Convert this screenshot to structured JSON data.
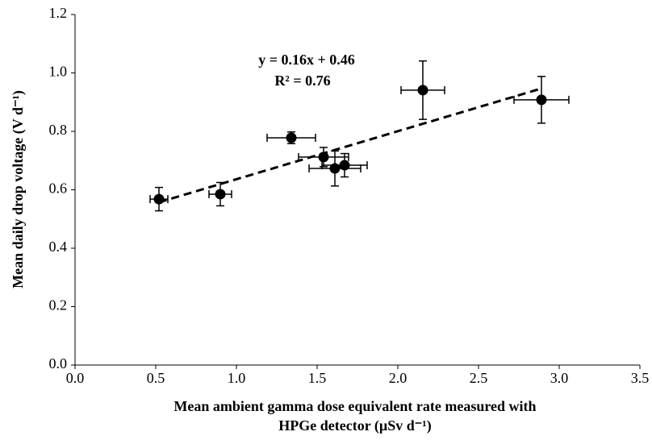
{
  "chart_data": {
    "type": "scatter",
    "x_label": [
      "Mean ambient gamma dose equivalent  rate measured with",
      "HPGe detector (µSv d⁻¹)"
    ],
    "y_label": "Mean daily drop voltage (V d⁻¹)",
    "annotations": [
      "y = 0.16x + 0.46",
      "R² = 0.76"
    ],
    "x": [
      0.52,
      0.9,
      1.34,
      1.54,
      1.61,
      1.67,
      2.155,
      2.89
    ],
    "y": [
      0.568,
      0.585,
      0.778,
      0.712,
      0.673,
      0.684,
      0.941,
      0.908
    ],
    "xerr": [
      0.055,
      0.07,
      0.15,
      0.155,
      0.16,
      0.14,
      0.135,
      0.17
    ],
    "yerr": [
      0.04,
      0.04,
      0.02,
      0.033,
      0.06,
      0.04,
      0.1,
      0.08
    ],
    "color": "#000000",
    "trendline": "dashed",
    "xlim": [
      0,
      3.5
    ],
    "xticks": [
      {
        "value": 0,
        "label": "0.0"
      },
      0.5,
      {
        "value": 1,
        "label": "1.0"
      },
      1.5,
      {
        "value": 2,
        "label": "2.0"
      },
      2.5,
      {
        "value": 3,
        "label": "3.0"
      },
      3.5
    ],
    "ylim": [
      0,
      1.2
    ],
    "yticks": [
      {
        "value": 0,
        "label": "0.0"
      },
      0.2,
      0.4,
      0.6,
      0.8,
      {
        "value": 1,
        "label": "1.0"
      },
      1.2
    ]
  }
}
